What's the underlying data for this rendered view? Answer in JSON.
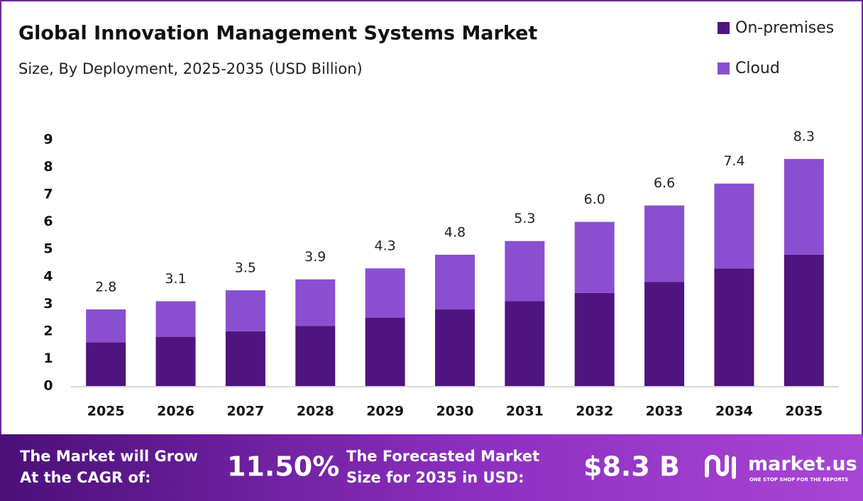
{
  "chart_data": {
    "type": "stacked_bar",
    "title": "Global Innovation Management Systems Market",
    "subtitle": "Size, By Deployment, 2025-2035 (USD Billion)",
    "categories": [
      "2025",
      "2026",
      "2027",
      "2028",
      "2029",
      "2030",
      "2031",
      "2032",
      "2033",
      "2034",
      "2035"
    ],
    "series": [
      {
        "name": "On-premises",
        "color": "#4f1480",
        "values": [
          1.6,
          1.8,
          2.0,
          2.2,
          2.5,
          2.8,
          3.1,
          3.4,
          3.8,
          4.3,
          4.8
        ]
      },
      {
        "name": "Cloud",
        "color": "#8a4fd0",
        "values": [
          1.2,
          1.3,
          1.5,
          1.7,
          1.8,
          2.0,
          2.2,
          2.6,
          2.8,
          3.1,
          3.5
        ]
      }
    ],
    "totals": {
      "values": [
        2.8,
        3.1,
        3.5,
        3.9,
        4.3,
        4.8,
        5.3,
        6.0,
        6.6,
        7.4,
        8.3
      ],
      "value_labels": [
        "2.8",
        "3.1",
        "3.5",
        "3.9",
        "4.3",
        "4.8",
        "5.3",
        "6.0",
        "6.6",
        "7.4",
        "8.3"
      ]
    },
    "ylim": [
      0,
      9
    ],
    "yticks": [
      0,
      1,
      2,
      3,
      4,
      5,
      6,
      7,
      8,
      9
    ],
    "grid": false,
    "legend": "top-right"
  },
  "footer": {
    "cagr_text": [
      "The Market will Grow",
      "At the CAGR of:"
    ],
    "cagr_value": "11.50%",
    "forecast_text": [
      "The Forecasted Market",
      "Size for 2035 in USD:"
    ],
    "forecast_value": "$8.3 B",
    "brand": "market.us",
    "tagline": "ONE STOP SHOP FOR THE REPORTS"
  }
}
